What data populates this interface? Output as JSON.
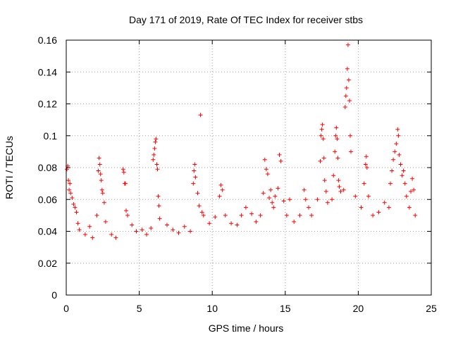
{
  "chart_data": {
    "type": "scatter",
    "title": "Day 171 of 2019, Rate Of TEC Index for receiver stbs",
    "xlabel": "GPS time / hours",
    "ylabel": "ROTI / TECUs",
    "xlim": [
      0,
      25
    ],
    "ylim": [
      0,
      0.16
    ],
    "x_ticks": [
      0,
      5,
      10,
      15,
      20,
      25
    ],
    "x_tick_labels": [
      "0",
      "5",
      "10",
      "15",
      "20",
      "25"
    ],
    "y_ticks": [
      0,
      0.02,
      0.04,
      0.06,
      0.08,
      0.1,
      0.12,
      0.14,
      0.16
    ],
    "y_tick_labels": [
      "0",
      "0.02",
      "0.04",
      "0.06",
      "0.08",
      "0.1",
      "0.12",
      "0.14",
      "0.16"
    ],
    "grid": true,
    "marker": "+",
    "color": "#ff0000",
    "series": [
      {
        "name": "ROTI",
        "points": [
          [
            0.05,
            0.079
          ],
          [
            0.1,
            0.081
          ],
          [
            0.15,
            0.072
          ],
          [
            0.2,
            0.066
          ],
          [
            0.25,
            0.07
          ],
          [
            0.3,
            0.064
          ],
          [
            0.4,
            0.061
          ],
          [
            0.5,
            0.057
          ],
          [
            0.6,
            0.055
          ],
          [
            0.7,
            0.052
          ],
          [
            0.8,
            0.045
          ],
          [
            0.9,
            0.041
          ],
          [
            1.3,
            0.038
          ],
          [
            1.6,
            0.043
          ],
          [
            1.8,
            0.036
          ],
          [
            2.1,
            0.05
          ],
          [
            2.2,
            0.078
          ],
          [
            2.25,
            0.086
          ],
          [
            2.3,
            0.082
          ],
          [
            2.35,
            0.076
          ],
          [
            2.4,
            0.072
          ],
          [
            2.45,
            0.066
          ],
          [
            2.5,
            0.064
          ],
          [
            2.6,
            0.058
          ],
          [
            2.7,
            0.046
          ],
          [
            3.1,
            0.038
          ],
          [
            3.4,
            0.036
          ],
          [
            3.9,
            0.079
          ],
          [
            3.95,
            0.077
          ],
          [
            4.0,
            0.07
          ],
          [
            4.05,
            0.07
          ],
          [
            4.1,
            0.053
          ],
          [
            4.2,
            0.05
          ],
          [
            4.5,
            0.044
          ],
          [
            4.8,
            0.04
          ],
          [
            5.2,
            0.041
          ],
          [
            5.5,
            0.038
          ],
          [
            5.8,
            0.042
          ],
          [
            5.95,
            0.085
          ],
          [
            6.0,
            0.088
          ],
          [
            6.05,
            0.092
          ],
          [
            6.1,
            0.096
          ],
          [
            6.15,
            0.098
          ],
          [
            6.2,
            0.082
          ],
          [
            6.25,
            0.079
          ],
          [
            6.3,
            0.062
          ],
          [
            6.35,
            0.056
          ],
          [
            6.4,
            0.048
          ],
          [
            6.9,
            0.044
          ],
          [
            7.3,
            0.041
          ],
          [
            7.7,
            0.039
          ],
          [
            8.1,
            0.043
          ],
          [
            8.5,
            0.04
          ],
          [
            8.7,
            0.07
          ],
          [
            8.75,
            0.078
          ],
          [
            8.8,
            0.082
          ],
          [
            8.85,
            0.074
          ],
          [
            9.0,
            0.064
          ],
          [
            9.1,
            0.056
          ],
          [
            9.2,
            0.113
          ],
          [
            9.3,
            0.052
          ],
          [
            9.4,
            0.05
          ],
          [
            9.8,
            0.045
          ],
          [
            10.2,
            0.049
          ],
          [
            10.5,
            0.062
          ],
          [
            10.6,
            0.069
          ],
          [
            10.7,
            0.066
          ],
          [
            10.9,
            0.05
          ],
          [
            11.3,
            0.045
          ],
          [
            11.7,
            0.044
          ],
          [
            12.0,
            0.05
          ],
          [
            12.3,
            0.055
          ],
          [
            12.7,
            0.051
          ],
          [
            13.0,
            0.046
          ],
          [
            13.3,
            0.05
          ],
          [
            13.5,
            0.064
          ],
          [
            13.6,
            0.085
          ],
          [
            13.7,
            0.079
          ],
          [
            13.8,
            0.076
          ],
          [
            13.9,
            0.061
          ],
          [
            14.0,
            0.066
          ],
          [
            14.1,
            0.058
          ],
          [
            14.2,
            0.055
          ],
          [
            14.3,
            0.062
          ],
          [
            14.5,
            0.067
          ],
          [
            14.6,
            0.088
          ],
          [
            14.7,
            0.084
          ],
          [
            14.9,
            0.059
          ],
          [
            15.1,
            0.05
          ],
          [
            15.3,
            0.06
          ],
          [
            15.6,
            0.046
          ],
          [
            16.0,
            0.05
          ],
          [
            16.3,
            0.066
          ],
          [
            16.4,
            0.06
          ],
          [
            16.6,
            0.055
          ],
          [
            16.8,
            0.05
          ],
          [
            17.2,
            0.06
          ],
          [
            17.4,
            0.084
          ],
          [
            17.45,
            0.1
          ],
          [
            17.5,
            0.104
          ],
          [
            17.55,
            0.107
          ],
          [
            17.6,
            0.098
          ],
          [
            17.65,
            0.086
          ],
          [
            17.7,
            0.072
          ],
          [
            17.8,
            0.065
          ],
          [
            17.9,
            0.058
          ],
          [
            18.2,
            0.06
          ],
          [
            18.3,
            0.075
          ],
          [
            18.4,
            0.09
          ],
          [
            18.45,
            0.1
          ],
          [
            18.5,
            0.105
          ],
          [
            18.55,
            0.098
          ],
          [
            18.6,
            0.086
          ],
          [
            18.65,
            0.072
          ],
          [
            18.7,
            0.068
          ],
          [
            18.8,
            0.065
          ],
          [
            19.0,
            0.066
          ],
          [
            19.1,
            0.118
          ],
          [
            19.15,
            0.125
          ],
          [
            19.2,
            0.13
          ],
          [
            19.25,
            0.142
          ],
          [
            19.3,
            0.157
          ],
          [
            19.35,
            0.135
          ],
          [
            19.4,
            0.122
          ],
          [
            19.45,
            0.1
          ],
          [
            19.5,
            0.09
          ],
          [
            19.8,
            0.062
          ],
          [
            20.2,
            0.055
          ],
          [
            20.4,
            0.07
          ],
          [
            20.5,
            0.082
          ],
          [
            20.55,
            0.087
          ],
          [
            20.6,
            0.08
          ],
          [
            20.7,
            0.062
          ],
          [
            21.0,
            0.05
          ],
          [
            21.4,
            0.052
          ],
          [
            21.8,
            0.058
          ],
          [
            22.1,
            0.055
          ],
          [
            22.2,
            0.07
          ],
          [
            22.3,
            0.078
          ],
          [
            22.4,
            0.085
          ],
          [
            22.5,
            0.09
          ],
          [
            22.6,
            0.095
          ],
          [
            22.7,
            0.104
          ],
          [
            22.75,
            0.1
          ],
          [
            22.8,
            0.088
          ],
          [
            22.9,
            0.082
          ],
          [
            23.0,
            0.075
          ],
          [
            23.1,
            0.078
          ],
          [
            23.2,
            0.07
          ],
          [
            23.3,
            0.062
          ],
          [
            23.5,
            0.055
          ],
          [
            23.6,
            0.065
          ],
          [
            23.7,
            0.073
          ],
          [
            23.8,
            0.066
          ],
          [
            23.9,
            0.05
          ]
        ]
      }
    ]
  }
}
